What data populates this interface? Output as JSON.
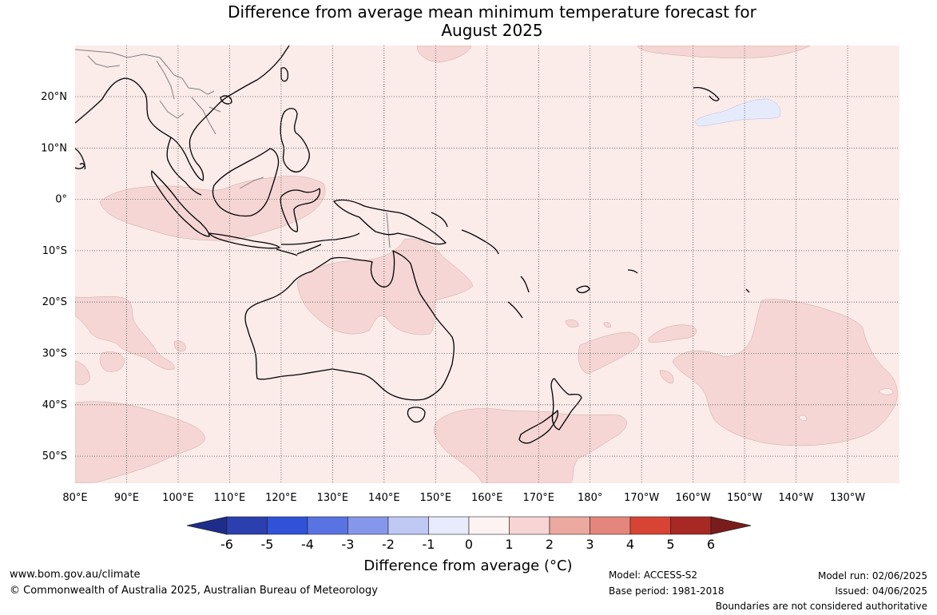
{
  "title_line1": "Difference from average mean minimum temperature forecast for",
  "title_line2": "August 2025",
  "map": {
    "lat_ticks": [
      "20°N",
      "10°N",
      "0°",
      "10°S",
      "20°S",
      "30°S",
      "40°S",
      "50°S"
    ],
    "lon_ticks": [
      "80°E",
      "90°E",
      "100°E",
      "110°E",
      "120°E",
      "130°E",
      "140°E",
      "150°E",
      "160°E",
      "170°E",
      "180°",
      "170°W",
      "160°W",
      "150°W",
      "140°W",
      "130°W"
    ],
    "background_category": "0 to 1",
    "colors": {
      "anom_0_1": "#fbebe9",
      "anom_1_2": "#f5d6d4",
      "anom_m1_0": "#e6ebfb",
      "coast": "#000000",
      "border": "#808080",
      "grid": "#555555"
    }
  },
  "colorbar": {
    "labels": [
      "-6",
      "-5",
      "-4",
      "-3",
      "-2",
      "-1",
      "0",
      "1",
      "2",
      "3",
      "4",
      "5",
      "6"
    ],
    "colors": [
      "#1e2c8a",
      "#2b3fae",
      "#2f52d9",
      "#5a73e3",
      "#8597ea",
      "#c0c8f4",
      "#e8ebfc",
      "#fdf3f2",
      "#f7d5d4",
      "#eca99f",
      "#e4867c",
      "#d84433",
      "#a82823",
      "#7a1c1b"
    ],
    "title": "Difference from average (°C)"
  },
  "footer": {
    "website": "www.bom.gov.au/climate",
    "copyright": "© Commonwealth of Australia 2025, Australian Bureau of Meteorology",
    "model": "Model: ACCESS-S2",
    "base_period": "Base period: 1981-2018",
    "model_run": "Model run: 02/06/2025",
    "issued": "Issued: 04/06/2025",
    "boundaries": "Boundaries are not considered authoritative"
  }
}
